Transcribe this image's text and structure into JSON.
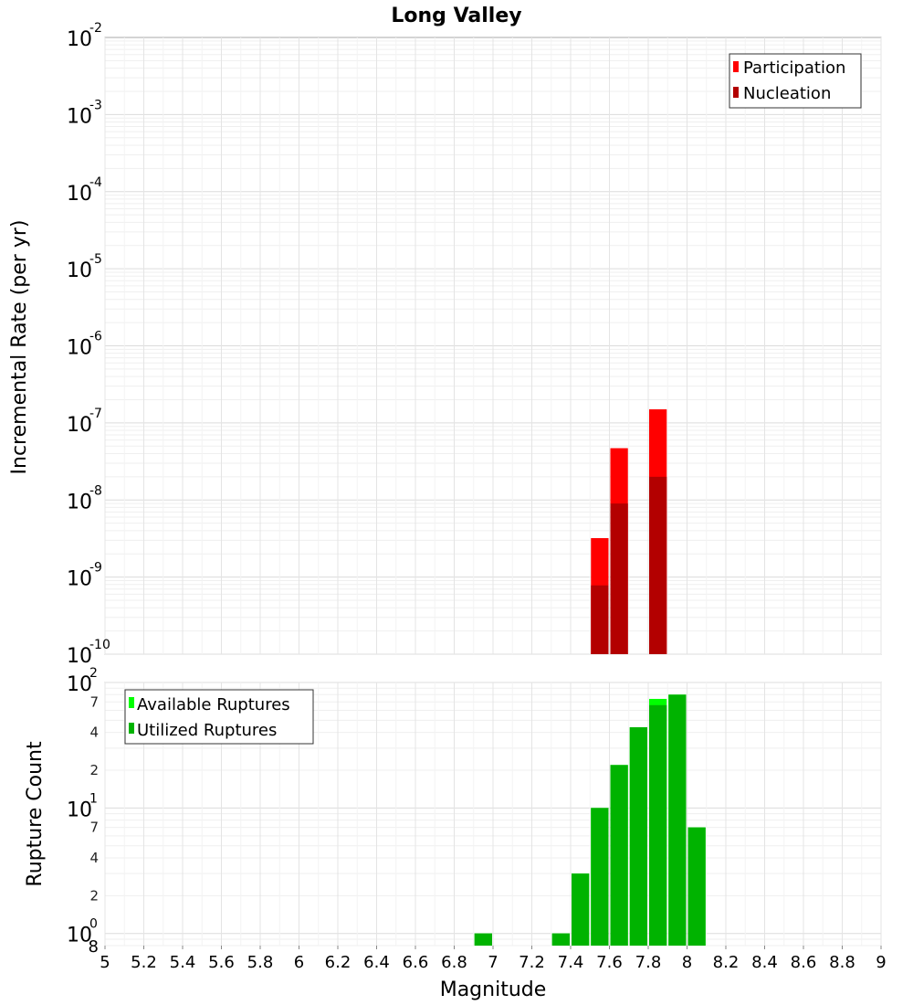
{
  "title": "Long Valley",
  "chart_data": [
    {
      "type": "bar",
      "scale": "log",
      "ylabel": "Incremental Rate (per yr)",
      "ylim": [
        1e-10,
        0.01
      ],
      "y_tick_exponents": [
        -2,
        -3,
        -4,
        -5,
        -6,
        -7,
        -8,
        -9,
        -10
      ],
      "y_tick_base": "10",
      "legend": {
        "placement": "top-right",
        "entries": [
          "Participation",
          "Nucleation"
        ]
      },
      "colors": {
        "Participation": "#ff0000",
        "Nucleation": "#b30000"
      },
      "bin_width": 0.1,
      "series": [
        {
          "name": "Participation",
          "x": [
            7.55,
            7.65,
            7.85
          ],
          "values": [
            3.2e-09,
            4.7e-08,
            1.5e-07
          ]
        },
        {
          "name": "Nucleation",
          "x": [
            7.55,
            7.65,
            7.85
          ],
          "values": [
            7.8e-10,
            9e-09,
            2e-08
          ]
        }
      ]
    },
    {
      "type": "bar",
      "scale": "log",
      "ylabel": "Rupture Count",
      "xlabel": "Magnitude",
      "ylim": [
        0.8,
        100
      ],
      "y_major_exponents": [
        2,
        1,
        0
      ],
      "y_major_base": "10",
      "y_minor_labels": [
        {
          "value": 70,
          "label": "7"
        },
        {
          "value": 40,
          "label": "4"
        },
        {
          "value": 20,
          "label": "2"
        },
        {
          "value": 7,
          "label": "7"
        },
        {
          "value": 4,
          "label": "4"
        },
        {
          "value": 2,
          "label": "2"
        }
      ],
      "y_bottom_label": "8",
      "xlim": [
        5,
        9
      ],
      "x_ticks": [
        "5",
        "5.2",
        "5.4",
        "5.6",
        "5.8",
        "6",
        "6.2",
        "6.4",
        "6.6",
        "6.8",
        "7",
        "7.2",
        "7.4",
        "7.6",
        "7.8",
        "8",
        "8.2",
        "8.4",
        "8.6",
        "8.8",
        "9"
      ],
      "legend": {
        "placement": "top-left",
        "entries": [
          "Available Ruptures",
          "Utilized Ruptures"
        ]
      },
      "colors": {
        "Available Ruptures": "#00ff00",
        "Utilized Ruptures": "#00b300"
      },
      "bin_width": 0.1,
      "series": [
        {
          "name": "Available Ruptures",
          "x": [
            6.95,
            7.35,
            7.45,
            7.55,
            7.65,
            7.75,
            7.85,
            7.95,
            8.05
          ],
          "values": [
            1,
            1,
            3,
            10,
            22,
            44,
            74,
            80,
            7
          ]
        },
        {
          "name": "Utilized Ruptures",
          "x": [
            6.95,
            7.35,
            7.45,
            7.55,
            7.65,
            7.75,
            7.85,
            7.95,
            8.05
          ],
          "values": [
            1,
            1,
            3,
            10,
            22,
            44,
            66,
            80,
            7
          ]
        }
      ]
    }
  ]
}
